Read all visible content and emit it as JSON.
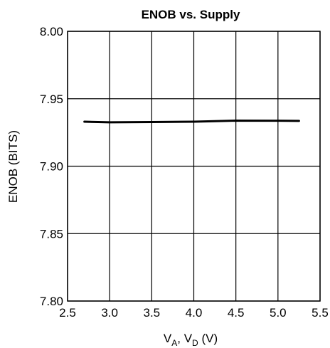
{
  "chart_data": {
    "type": "line",
    "title": "ENOB vs. Supply",
    "xlabel": {
      "main": "V",
      "sub_a": "A",
      "sep": ", V",
      "sub_d": "D",
      "unit": " (V)"
    },
    "ylabel": "ENOB (BITS)",
    "xlim": [
      2.5,
      5.5
    ],
    "ylim": [
      7.8,
      8.0
    ],
    "x_ticks": [
      "2.5",
      "3.0",
      "3.5",
      "4.0",
      "4.5",
      "5.0",
      "5.5"
    ],
    "y_ticks": [
      "8.00",
      "7.95",
      "7.90",
      "7.85",
      "7.80"
    ],
    "grid": true,
    "series": [
      {
        "x": [
          2.7,
          3.0,
          3.5,
          4.0,
          4.5,
          5.0,
          5.25
        ],
        "y": [
          7.933,
          7.9325,
          7.9327,
          7.933,
          7.9338,
          7.9337,
          7.9336
        ]
      }
    ]
  }
}
